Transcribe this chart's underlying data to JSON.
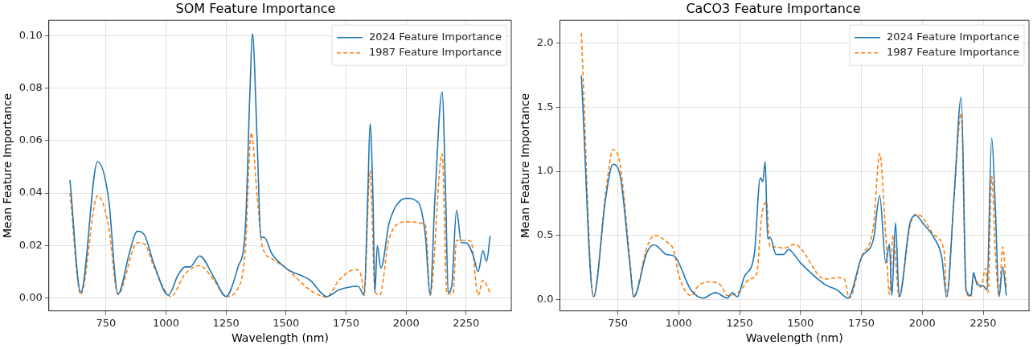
{
  "chart_data": [
    {
      "type": "line",
      "title": "SOM Feature Importance",
      "xlabel": "Wavelength (nm)",
      "ylabel": "Mean Feature Importance",
      "xlim": [
        512,
        2438
      ],
      "xticks": [
        750,
        1000,
        1250,
        1500,
        1750,
        2000,
        2250
      ],
      "ylim": [
        -0.005,
        0.106
      ],
      "yticks": [
        {
          "value": 0,
          "label": "0.00"
        },
        {
          "value": 0.02,
          "label": "0.02"
        },
        {
          "value": 0.04,
          "label": "0.04"
        },
        {
          "value": 0.06,
          "label": "0.06"
        },
        {
          "value": 0.08,
          "label": "0.08"
        },
        {
          "value": 0.1,
          "label": "0.10"
        }
      ],
      "grid": true,
      "legend": "top right",
      "marker": "none",
      "series": [
        {
          "name": "2024 Feature Importance",
          "color": "#1f77b4",
          "line_style": "solid",
          "x": [
            600,
            645,
            715,
            760,
            800,
            850,
            880,
            910,
            950,
            1010,
            1050,
            1080,
            1100,
            1140,
            1200,
            1250,
            1300,
            1330,
            1350,
            1360,
            1380,
            1395,
            1410,
            1440,
            1500,
            1600,
            1670,
            1720,
            1800,
            1825,
            1840,
            1850,
            1862,
            1870,
            1880,
            1895,
            1930,
            2000,
            2050,
            2080,
            2100,
            2120,
            2150,
            2165,
            2175,
            2190,
            2210,
            2230,
            2250,
            2280,
            2300,
            2320,
            2335,
            2350
          ],
          "values": [
            0.045,
            0.002,
            0.052,
            0.0385,
            0.0015,
            0.018,
            0.0254,
            0.024,
            0.0128,
            0.001,
            0.0087,
            0.0118,
            0.0118,
            0.016,
            0.0077,
            0.0005,
            0.0118,
            0.026,
            0.08,
            0.101,
            0.059,
            0.0233,
            0.023,
            0.017,
            0.0113,
            0.0067,
            0.0005,
            0.003,
            0.0044,
            0.001,
            0.038,
            0.0665,
            0.038,
            0.002,
            0.02,
            0.0113,
            0.0288,
            0.038,
            0.0365,
            0.024,
            0.001,
            0.038,
            0.0786,
            0.038,
            0.002,
            0.0046,
            0.0334,
            0.021,
            0.021,
            0.016,
            0.01,
            0.018,
            0.0139,
            0.0236
          ]
        },
        {
          "name": "1987 Feature Importance",
          "color": "#ff7f0e",
          "line_style": "dashed",
          "x": [
            600,
            645,
            715,
            760,
            800,
            880,
            910,
            950,
            1020,
            1080,
            1140,
            1200,
            1250,
            1300,
            1330,
            1355,
            1380,
            1400,
            1440,
            1500,
            1600,
            1670,
            1720,
            1790,
            1815,
            1825,
            1850,
            1870,
            1890,
            1930,
            2000,
            2080,
            2100,
            2150,
            2170,
            2195,
            2210,
            2270,
            2300,
            2320,
            2350
          ],
          "values": [
            0.04,
            0.0013,
            0.039,
            0.028,
            0.0013,
            0.021,
            0.0206,
            0.0118,
            0.0005,
            0.0092,
            0.0123,
            0.0067,
            0.0005,
            0.0036,
            0.018,
            0.063,
            0.0385,
            0.02,
            0.015,
            0.0113,
            0.003,
            0.0003,
            0.0067,
            0.0108,
            0.0077,
            0.001,
            0.0488,
            0.0026,
            0.001,
            0.023,
            0.029,
            0.028,
            0.001,
            0.055,
            0.0015,
            0.0015,
            0.022,
            0.0216,
            0.001,
            0.0067,
            0.002
          ]
        }
      ]
    },
    {
      "type": "line",
      "title": "CaCO3 Feature Importance",
      "xlabel": "Wavelength (nm)",
      "ylabel": "Mean Feature Importance",
      "xlim": [
        512,
        2438
      ],
      "xticks": [
        750,
        1000,
        1250,
        1500,
        1750,
        2000,
        2250
      ],
      "ylim": [
        -0.09,
        2.18
      ],
      "yticks": [
        {
          "value": 0,
          "label": "0.0"
        },
        {
          "value": 0.5,
          "label": "0.5"
        },
        {
          "value": 1,
          "label": "1.0"
        },
        {
          "value": 1.5,
          "label": "1.5"
        },
        {
          "value": 2,
          "label": "2.0"
        }
      ],
      "grid": true,
      "legend": "top right",
      "marker": "none",
      "series": [
        {
          "name": "2024 Feature Importance",
          "color": "#1f77b4",
          "line_style": "solid",
          "x": [
            600,
            650,
            700,
            730,
            760,
            800,
            815,
            870,
            900,
            950,
            980,
            1050,
            1100,
            1150,
            1200,
            1220,
            1240,
            1270,
            1310,
            1335,
            1345,
            1355,
            1365,
            1375,
            1400,
            1430,
            1450,
            1500,
            1600,
            1650,
            1695,
            1750,
            1800,
            1825,
            1850,
            1865,
            1875,
            1890,
            1905,
            1950,
            1975,
            2000,
            2050,
            2080,
            2100,
            2130,
            2160,
            2180,
            2200,
            2210,
            2225,
            2250,
            2265,
            2285,
            2300,
            2315,
            2330,
            2345
          ],
          "values": [
            1.75,
            0.02,
            0.79,
            1.055,
            0.96,
            0.26,
            0.02,
            0.37,
            0.426,
            0.35,
            0.34,
            0.074,
            0.01,
            0.053,
            0.01,
            0.053,
            0.02,
            0.18,
            0.35,
            0.95,
            0.92,
            1.075,
            0.475,
            0.485,
            0.35,
            0.35,
            0.39,
            0.285,
            0.116,
            0.074,
            0.01,
            0.327,
            0.475,
            0.81,
            0.285,
            0.43,
            0.03,
            0.6,
            0.02,
            0.6,
            0.655,
            0.6,
            0.475,
            0.327,
            0.02,
            0.79,
            1.58,
            0.074,
            0.03,
            0.21,
            0.116,
            0.105,
            0.074,
            1.26,
            0.707,
            0.02,
            0.253,
            0.03
          ]
        },
        {
          "name": "1987 Feature Importance",
          "color": "#ff7f0e",
          "line_style": "dashed",
          "x": [
            600,
            650,
            700,
            730,
            760,
            800,
            815,
            870,
            900,
            950,
            980,
            1000,
            1050,
            1080,
            1120,
            1170,
            1200,
            1250,
            1290,
            1320,
            1340,
            1360,
            1375,
            1400,
            1430,
            1480,
            1500,
            1600,
            1650,
            1680,
            1700,
            1750,
            1800,
            1825,
            1850,
            1865,
            1880,
            1905,
            1950,
            1975,
            2000,
            2050,
            2090,
            2100,
            2130,
            2160,
            2180,
            2200,
            2210,
            2240,
            2260,
            2270,
            2285,
            2300,
            2315,
            2330,
            2345
          ],
          "values": [
            2.08,
            0.02,
            0.83,
            1.17,
            1.045,
            0.3,
            0.02,
            0.41,
            0.5,
            0.45,
            0.38,
            0.19,
            0.03,
            0.105,
            0.137,
            0.116,
            0.03,
            0.063,
            0.158,
            0.2,
            0.643,
            0.76,
            0.41,
            0.41,
            0.4,
            0.43,
            0.4,
            0.158,
            0.169,
            0.158,
            0.01,
            0.327,
            0.58,
            1.14,
            0.5,
            0.04,
            0.5,
            0.02,
            0.58,
            0.665,
            0.643,
            0.5,
            0.37,
            0.02,
            0.79,
            1.455,
            0.053,
            0.02,
            0.18,
            0.095,
            0.243,
            0.053,
            0.96,
            0.37,
            0.03,
            0.41,
            0.095
          ]
        }
      ]
    }
  ]
}
